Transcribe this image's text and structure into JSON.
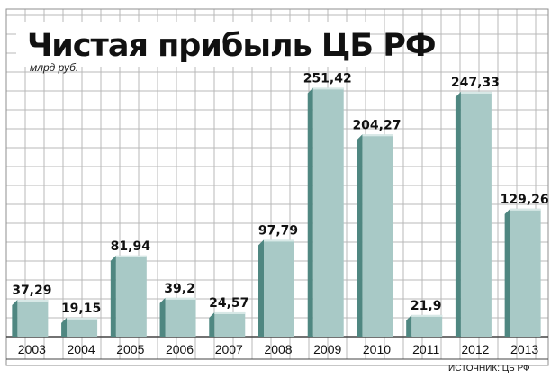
{
  "chart_data": {
    "type": "bar",
    "title": "Чистая прибыль ЦБ РФ",
    "unit_label": "млрд руб.",
    "categories": [
      "2003",
      "2004",
      "2005",
      "2006",
      "2007",
      "2008",
      "2009",
      "2010",
      "2011",
      "2012",
      "2013"
    ],
    "values": [
      37.29,
      19.15,
      81.94,
      39.2,
      24.57,
      97.79,
      251.42,
      204.27,
      21.9,
      247.33,
      129.26
    ],
    "value_labels": [
      "37,29",
      "19,15",
      "81,94",
      "39,2",
      "24,57",
      "97,79",
      "251,42",
      "204,27",
      "21,9",
      "247,33",
      "129,26"
    ],
    "ylim": [
      0,
      270
    ],
    "grid": true,
    "source": "ИСТОЧНИК: ЦБ РФ",
    "colors": {
      "bar_front": "#a8c9c6",
      "bar_side": "#4f8781",
      "bar_top": "#d8e9e7",
      "grid": "#b9b9b9",
      "frame": "#8f8f8f"
    }
  }
}
